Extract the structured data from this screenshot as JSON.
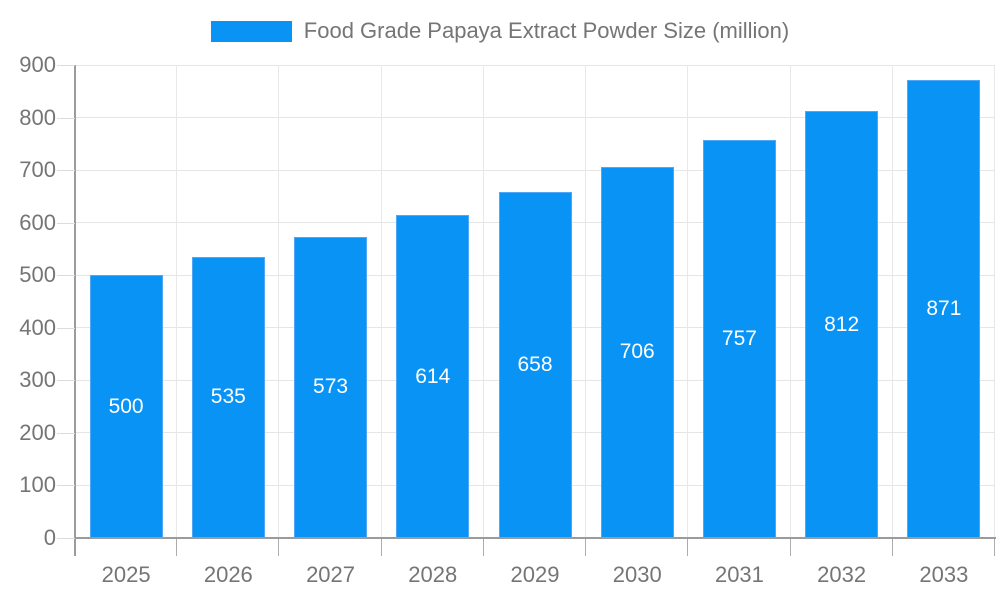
{
  "chart_data": {
    "type": "bar",
    "title": "Food Grade Papaya Extract Powder Size (million)",
    "categories": [
      "2025",
      "2026",
      "2027",
      "2028",
      "2029",
      "2030",
      "2031",
      "2032",
      "2033"
    ],
    "values": [
      500,
      535,
      573,
      614,
      658,
      706,
      757,
      812,
      871
    ],
    "xlabel": "",
    "ylabel": "",
    "ylim": [
      0,
      900
    ],
    "yticks": [
      0,
      100,
      200,
      300,
      400,
      500,
      600,
      700,
      800,
      900
    ],
    "grid": true,
    "legend_position": "top-center",
    "value_labels_inside_bars": true,
    "colors": {
      "bar": "#0993f5",
      "bar_border": "#4fa8f5",
      "value_label": "#ffffff",
      "axis_text": "#757575",
      "axis_line": "#9b9b9b",
      "gridline": "#e6e6e6"
    }
  }
}
